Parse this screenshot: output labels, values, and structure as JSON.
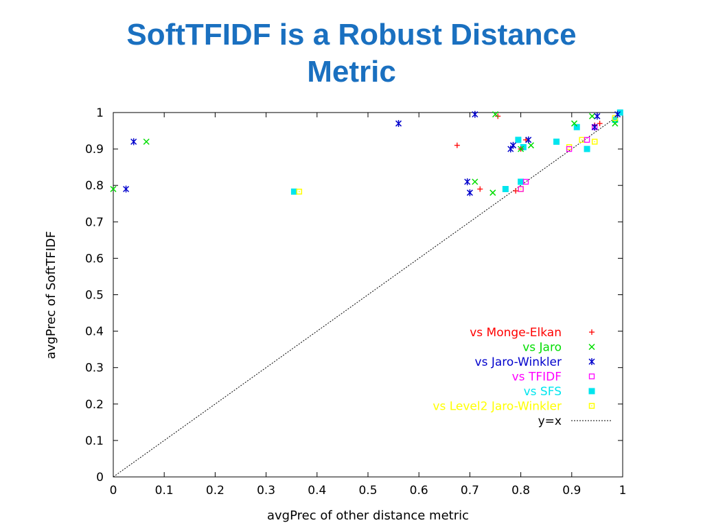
{
  "slide": {
    "title_line1": "SoftTFIDF is a Robust Distance",
    "title_line2": "Metric"
  },
  "chart_data": {
    "type": "scatter",
    "title": "",
    "xlabel": "avgPrec of other distance metric",
    "ylabel": "avgPrec of SoftTFIDF",
    "xlim": [
      0,
      1
    ],
    "ylim": [
      0,
      1
    ],
    "xticks": [
      "0",
      "0.1",
      "0.2",
      "0.3",
      "0.4",
      "0.5",
      "0.6",
      "0.7",
      "0.8",
      "0.9",
      "1"
    ],
    "yticks": [
      "0",
      "0.1",
      "0.2",
      "0.3",
      "0.4",
      "0.5",
      "0.6",
      "0.7",
      "0.8",
      "0.9",
      "1"
    ],
    "grid": false,
    "legend_position": "bottom-right",
    "series": [
      {
        "name": "vs Monge-Elkan",
        "marker": "plus",
        "color": "#ff0000",
        "points": [
          [
            0.675,
            0.91
          ],
          [
            0.72,
            0.79
          ],
          [
            0.755,
            0.99
          ],
          [
            0.79,
            0.785
          ],
          [
            0.8,
            0.9
          ],
          [
            0.81,
            0.925
          ],
          [
            0.945,
            0.965
          ],
          [
            0.955,
            0.97
          ]
        ]
      },
      {
        "name": "vs Jaro",
        "marker": "cross",
        "color": "#00dd00",
        "points": [
          [
            0.0,
            0.79
          ],
          [
            0.065,
            0.92
          ],
          [
            0.71,
            0.81
          ],
          [
            0.745,
            0.78
          ],
          [
            0.75,
            0.995
          ],
          [
            0.8,
            0.9
          ],
          [
            0.82,
            0.91
          ],
          [
            0.905,
            0.97
          ],
          [
            0.94,
            0.99
          ],
          [
            0.985,
            0.97
          ]
        ]
      },
      {
        "name": "vs Jaro-Winkler",
        "marker": "star",
        "color": "#0000cc",
        "points": [
          [
            0.025,
            0.79
          ],
          [
            0.04,
            0.92
          ],
          [
            0.56,
            0.97
          ],
          [
            0.695,
            0.81
          ],
          [
            0.7,
            0.78
          ],
          [
            0.71,
            0.995
          ],
          [
            0.78,
            0.9
          ],
          [
            0.785,
            0.91
          ],
          [
            0.815,
            0.925
          ],
          [
            0.945,
            0.96
          ],
          [
            0.95,
            0.99
          ],
          [
            0.99,
            0.995
          ]
        ]
      },
      {
        "name": "vs TFIDF",
        "marker": "square-open",
        "color": "#ff00ff",
        "points": [
          [
            0.8,
            0.79
          ],
          [
            0.81,
            0.81
          ],
          [
            0.895,
            0.9
          ],
          [
            0.93,
            0.925
          ],
          [
            0.945,
            0.96
          ]
        ]
      },
      {
        "name": "vs SFS",
        "marker": "square-filled",
        "color": "#00e5ee",
        "points": [
          [
            0.355,
            0.783
          ],
          [
            0.77,
            0.79
          ],
          [
            0.795,
            0.925
          ],
          [
            0.8,
            0.81
          ],
          [
            0.805,
            0.905
          ],
          [
            0.87,
            0.92
          ],
          [
            0.91,
            0.96
          ],
          [
            0.93,
            0.9
          ],
          [
            0.985,
            0.98
          ],
          [
            0.995,
            1.0
          ]
        ]
      },
      {
        "name": "vs Level2 Jaro-Winkler",
        "marker": "square-dot",
        "color": "#ffff00",
        "points": [
          [
            0.365,
            0.783
          ],
          [
            0.8,
            0.79
          ],
          [
            0.895,
            0.905
          ],
          [
            0.92,
            0.925
          ],
          [
            0.945,
            0.92
          ],
          [
            0.985,
            0.985
          ]
        ]
      },
      {
        "name": "y=x",
        "marker": "line",
        "color": "#000000",
        "points": [
          [
            0,
            0
          ],
          [
            1,
            1
          ]
        ]
      }
    ]
  }
}
